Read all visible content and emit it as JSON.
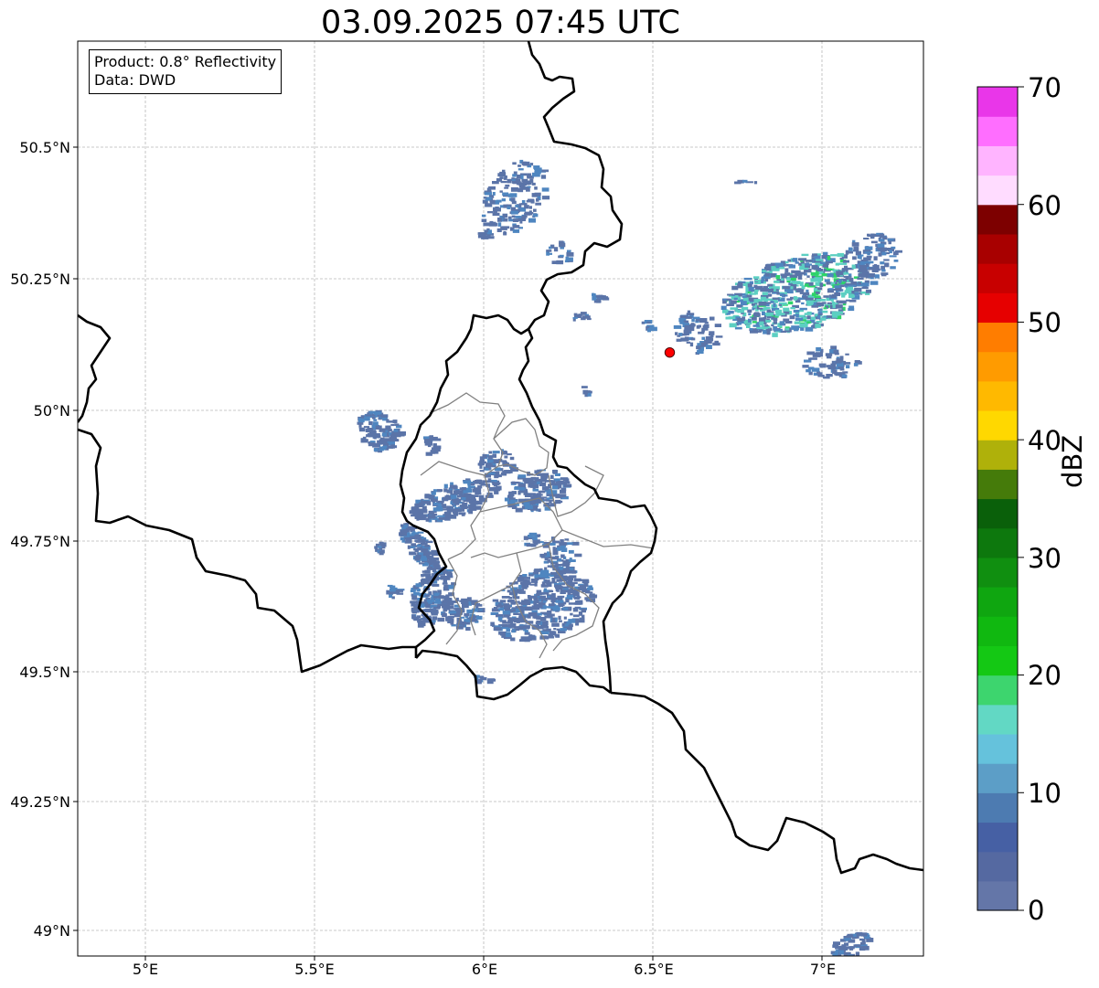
{
  "title": "03.09.2025 07:45 UTC",
  "info_box": {
    "product": "Product: 0.8° Reflectivity",
    "data_source": "Data: DWD"
  },
  "map_extent": {
    "lon_min": 4.8,
    "lon_max": 7.3,
    "lat_min": 48.95,
    "lat_max": 50.7
  },
  "gridlines": true,
  "lat_ticks": [
    "50.5°N",
    "50.25°N",
    "50°N",
    "49.75°N",
    "49.5°N",
    "49.25°N",
    "49°N"
  ],
  "lon_ticks": [
    "5°E",
    "5.5°E",
    "6°E",
    "6.5°E",
    "7°E"
  ],
  "colorbar": {
    "label": "dBZ",
    "ticks": [
      "70",
      "60",
      "50",
      "40",
      "30",
      "20",
      "10",
      "0"
    ],
    "range": [
      0,
      70
    ],
    "step": 2.5,
    "colors": [
      "#6476a8",
      "#5569a1",
      "#4660a4",
      "#4d7bb1",
      "#5c9ec7",
      "#65c2dc",
      "#62d8c4",
      "#3dd56e",
      "#14c814",
      "#10b810",
      "#0fa610",
      "#108f10",
      "#0d780d",
      "#0a600a",
      "#457b0a",
      "#afb10a",
      "#ffd800",
      "#ffb900",
      "#ff9b00",
      "#ff7d00",
      "#e60000",
      "#c80000",
      "#a80000",
      "#7d0000",
      "#ffdcff",
      "#ffb4ff",
      "#ff6eff",
      "#e936e9"
    ]
  },
  "radar_location": {
    "lon": 6.55,
    "lat": 50.11,
    "color": "#ff0000"
  },
  "echo_colors": {
    "light": "#5b74a8",
    "medium": "#4f86c0",
    "cyan": "#5ccfc2",
    "green": "#2ed36a"
  }
}
